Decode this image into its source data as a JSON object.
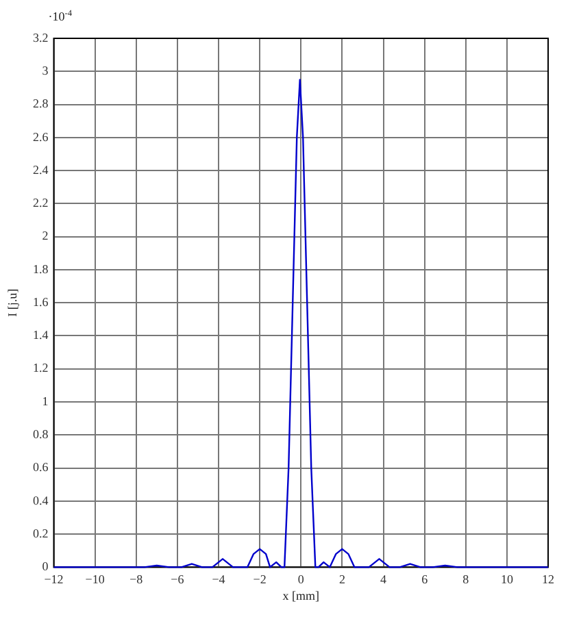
{
  "chart_data": {
    "type": "line",
    "xlabel": "x [mm]",
    "ylabel": "I [j.u]",
    "annotations": [
      "·10$^{-4}$"
    ],
    "x": [
      -12,
      -9,
      -7.6,
      -7,
      -6.4,
      -5.8,
      -5.3,
      -4.8,
      -4.3,
      -3.8,
      -3.3,
      -2.6,
      -2.3,
      -2,
      -1.7,
      -1.5,
      -1.2,
      -0.95,
      -0.8,
      -0.6,
      -0.4,
      -0.2,
      -0.05,
      0.1,
      0.3,
      0.5,
      0.7,
      0.85,
      1.1,
      1.4,
      1.7,
      2,
      2.3,
      2.6,
      3.3,
      3.8,
      4.3,
      4.8,
      5.3,
      5.8,
      6.4,
      7,
      7.6,
      9,
      12
    ],
    "series": [
      {
        "color": "#0000cc",
        "values": [
          0,
          0,
          0,
          0.01,
          0,
          0,
          0.02,
          0,
          0,
          0.05,
          0,
          0,
          0.08,
          0.11,
          0.08,
          0,
          0.03,
          0,
          0,
          0.6,
          1.6,
          2.6,
          2.95,
          2.6,
          1.6,
          0.6,
          0,
          0,
          0.03,
          0,
          0.08,
          0.11,
          0.08,
          0,
          0,
          0.05,
          0,
          0,
          0.02,
          0,
          0,
          0.01,
          0,
          0,
          0
        ]
      }
    ],
    "xlim": [
      -12,
      12
    ],
    "xticks": [
      -12,
      -10,
      -8,
      -6,
      -4,
      -2,
      0,
      2,
      4,
      6,
      8,
      10,
      12
    ],
    "ylim": [
      0,
      3.2
    ],
    "yticks": [
      0,
      0.2,
      0.4,
      0.6,
      0.8,
      1,
      1.2,
      1.4,
      1.6,
      1.8,
      2,
      2.2,
      2.4,
      2.6,
      2.8,
      3,
      3.2
    ],
    "grid": true,
    "legend": false,
    "marker": "none",
    "line_style": "solid"
  }
}
